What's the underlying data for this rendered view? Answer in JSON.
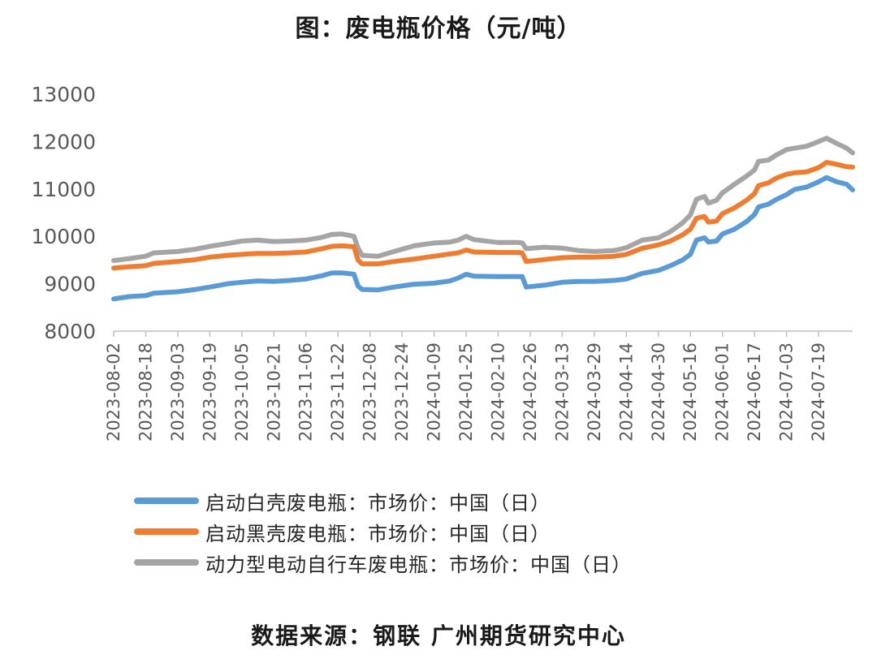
{
  "title": "图：废电瓶价格（元/吨）",
  "source": "数据来源：钢联 广州期货研究中心",
  "colors": {
    "axis": "#bfbfbf",
    "tick_text": "#595959",
    "series": [
      "#5b9bd5",
      "#ed7d31",
      "#a5a5a5"
    ]
  },
  "chart_data": {
    "type": "line",
    "title": "图：废电瓶价格（元/吨）",
    "ylim": [
      8000,
      13000
    ],
    "yticks": [
      8000,
      9000,
      10000,
      11000,
      12000,
      13000
    ],
    "x_range": [
      "2023-08-02",
      "2024-08-05"
    ],
    "xtick_labels": [
      "2023-08-02",
      "2023-08-18",
      "2023-09-03",
      "2023-09-19",
      "2023-10-05",
      "2023-10-21",
      "2023-11-06",
      "2023-11-22",
      "2023-12-08",
      "2023-12-24",
      "2024-01-09",
      "2024-01-25",
      "2024-02-10",
      "2024-02-26",
      "2024-03-13",
      "2024-03-29",
      "2024-04-14",
      "2024-04-30",
      "2024-05-16",
      "2024-06-01",
      "2024-06-17",
      "2024-07-03",
      "2024-07-19"
    ],
    "grid": false,
    "legend_position": "bottom",
    "series": [
      {
        "name": "启动白壳废电瓶：市场价：中国（日）",
        "color": "#5b9bd5",
        "points": [
          [
            "2023-08-02",
            8680
          ],
          [
            "2023-08-10",
            8730
          ],
          [
            "2023-08-18",
            8750
          ],
          [
            "2023-08-22",
            8800
          ],
          [
            "2023-09-03",
            8830
          ],
          [
            "2023-09-12",
            8880
          ],
          [
            "2023-09-19",
            8930
          ],
          [
            "2023-09-28",
            9000
          ],
          [
            "2023-10-05",
            9030
          ],
          [
            "2023-10-13",
            9060
          ],
          [
            "2023-10-21",
            9050
          ],
          [
            "2023-10-29",
            9070
          ],
          [
            "2023-11-06",
            9100
          ],
          [
            "2023-11-14",
            9170
          ],
          [
            "2023-11-19",
            9230
          ],
          [
            "2023-11-24",
            9230
          ],
          [
            "2023-11-30",
            9200
          ],
          [
            "2023-12-02",
            8950
          ],
          [
            "2023-12-04",
            8880
          ],
          [
            "2023-12-12",
            8870
          ],
          [
            "2023-12-20",
            8930
          ],
          [
            "2023-12-30",
            8990
          ],
          [
            "2024-01-09",
            9010
          ],
          [
            "2024-01-17",
            9060
          ],
          [
            "2024-01-21",
            9120
          ],
          [
            "2024-01-25",
            9200
          ],
          [
            "2024-01-29",
            9160
          ],
          [
            "2024-02-10",
            9150
          ],
          [
            "2024-02-20",
            9150
          ],
          [
            "2024-02-22",
            9150
          ],
          [
            "2024-02-24",
            8930
          ],
          [
            "2024-03-04",
            8970
          ],
          [
            "2024-03-13",
            9030
          ],
          [
            "2024-03-21",
            9050
          ],
          [
            "2024-03-29",
            9050
          ],
          [
            "2024-04-08",
            9070
          ],
          [
            "2024-04-14",
            9100
          ],
          [
            "2024-04-22",
            9220
          ],
          [
            "2024-04-30",
            9280
          ],
          [
            "2024-05-06",
            9380
          ],
          [
            "2024-05-12",
            9500
          ],
          [
            "2024-05-16",
            9620
          ],
          [
            "2024-05-19",
            9920
          ],
          [
            "2024-05-23",
            9970
          ],
          [
            "2024-05-25",
            9880
          ],
          [
            "2024-05-29",
            9900
          ],
          [
            "2024-06-01",
            10050
          ],
          [
            "2024-06-07",
            10150
          ],
          [
            "2024-06-13",
            10310
          ],
          [
            "2024-06-17",
            10460
          ],
          [
            "2024-06-19",
            10620
          ],
          [
            "2024-06-24",
            10680
          ],
          [
            "2024-06-28",
            10780
          ],
          [
            "2024-07-03",
            10880
          ],
          [
            "2024-07-07",
            10990
          ],
          [
            "2024-07-13",
            11040
          ],
          [
            "2024-07-19",
            11150
          ],
          [
            "2024-07-23",
            11240
          ],
          [
            "2024-07-28",
            11150
          ],
          [
            "2024-08-02",
            11100
          ],
          [
            "2024-08-05",
            10980
          ]
        ]
      },
      {
        "name": "启动黑壳废电瓶：市场价：中国（日）",
        "color": "#ed7d31",
        "points": [
          [
            "2023-08-02",
            9330
          ],
          [
            "2023-08-10",
            9360
          ],
          [
            "2023-08-18",
            9380
          ],
          [
            "2023-08-22",
            9430
          ],
          [
            "2023-09-03",
            9470
          ],
          [
            "2023-09-12",
            9510
          ],
          [
            "2023-09-19",
            9560
          ],
          [
            "2023-09-28",
            9600
          ],
          [
            "2023-10-05",
            9620
          ],
          [
            "2023-10-13",
            9640
          ],
          [
            "2023-10-21",
            9640
          ],
          [
            "2023-10-29",
            9650
          ],
          [
            "2023-11-06",
            9670
          ],
          [
            "2023-11-14",
            9740
          ],
          [
            "2023-11-19",
            9790
          ],
          [
            "2023-11-24",
            9800
          ],
          [
            "2023-11-30",
            9780
          ],
          [
            "2023-12-02",
            9500
          ],
          [
            "2023-12-04",
            9420
          ],
          [
            "2023-12-12",
            9420
          ],
          [
            "2023-12-20",
            9470
          ],
          [
            "2023-12-30",
            9520
          ],
          [
            "2024-01-09",
            9580
          ],
          [
            "2024-01-17",
            9630
          ],
          [
            "2024-01-21",
            9650
          ],
          [
            "2024-01-25",
            9710
          ],
          [
            "2024-01-29",
            9670
          ],
          [
            "2024-02-10",
            9660
          ],
          [
            "2024-02-20",
            9660
          ],
          [
            "2024-02-22",
            9650
          ],
          [
            "2024-02-24",
            9470
          ],
          [
            "2024-03-04",
            9510
          ],
          [
            "2024-03-13",
            9550
          ],
          [
            "2024-03-21",
            9560
          ],
          [
            "2024-03-29",
            9560
          ],
          [
            "2024-04-08",
            9580
          ],
          [
            "2024-04-14",
            9620
          ],
          [
            "2024-04-22",
            9750
          ],
          [
            "2024-04-30",
            9820
          ],
          [
            "2024-05-06",
            9900
          ],
          [
            "2024-05-12",
            10030
          ],
          [
            "2024-05-16",
            10150
          ],
          [
            "2024-05-19",
            10380
          ],
          [
            "2024-05-23",
            10420
          ],
          [
            "2024-05-25",
            10300
          ],
          [
            "2024-05-29",
            10320
          ],
          [
            "2024-06-01",
            10480
          ],
          [
            "2024-06-07",
            10600
          ],
          [
            "2024-06-13",
            10760
          ],
          [
            "2024-06-17",
            10900
          ],
          [
            "2024-06-19",
            11070
          ],
          [
            "2024-06-24",
            11130
          ],
          [
            "2024-06-28",
            11230
          ],
          [
            "2024-07-03",
            11310
          ],
          [
            "2024-07-07",
            11340
          ],
          [
            "2024-07-13",
            11360
          ],
          [
            "2024-07-19",
            11450
          ],
          [
            "2024-07-23",
            11560
          ],
          [
            "2024-07-28",
            11520
          ],
          [
            "2024-08-02",
            11470
          ],
          [
            "2024-08-05",
            11460
          ]
        ]
      },
      {
        "name": "动力型电动自行车废电瓶：市场价：中国（日）",
        "color": "#a5a5a5",
        "points": [
          [
            "2023-08-02",
            9490
          ],
          [
            "2023-08-10",
            9530
          ],
          [
            "2023-08-18",
            9580
          ],
          [
            "2023-08-22",
            9650
          ],
          [
            "2023-09-03",
            9680
          ],
          [
            "2023-09-12",
            9730
          ],
          [
            "2023-09-19",
            9790
          ],
          [
            "2023-09-28",
            9850
          ],
          [
            "2023-10-05",
            9900
          ],
          [
            "2023-10-13",
            9920
          ],
          [
            "2023-10-21",
            9890
          ],
          [
            "2023-10-29",
            9900
          ],
          [
            "2023-11-06",
            9920
          ],
          [
            "2023-11-14",
            9980
          ],
          [
            "2023-11-19",
            10040
          ],
          [
            "2023-11-24",
            10050
          ],
          [
            "2023-11-30",
            10000
          ],
          [
            "2023-12-02",
            9750
          ],
          [
            "2023-12-04",
            9600
          ],
          [
            "2023-12-12",
            9580
          ],
          [
            "2023-12-20",
            9680
          ],
          [
            "2023-12-30",
            9800
          ],
          [
            "2024-01-09",
            9860
          ],
          [
            "2024-01-17",
            9880
          ],
          [
            "2024-01-21",
            9920
          ],
          [
            "2024-01-25",
            10000
          ],
          [
            "2024-01-29",
            9930
          ],
          [
            "2024-02-10",
            9870
          ],
          [
            "2024-02-20",
            9870
          ],
          [
            "2024-02-22",
            9860
          ],
          [
            "2024-02-24",
            9740
          ],
          [
            "2024-03-04",
            9770
          ],
          [
            "2024-03-13",
            9750
          ],
          [
            "2024-03-21",
            9700
          ],
          [
            "2024-03-29",
            9680
          ],
          [
            "2024-04-08",
            9700
          ],
          [
            "2024-04-14",
            9760
          ],
          [
            "2024-04-22",
            9920
          ],
          [
            "2024-04-30",
            9970
          ],
          [
            "2024-05-06",
            10100
          ],
          [
            "2024-05-12",
            10280
          ],
          [
            "2024-05-16",
            10450
          ],
          [
            "2024-05-19",
            10780
          ],
          [
            "2024-05-23",
            10840
          ],
          [
            "2024-05-25",
            10700
          ],
          [
            "2024-05-29",
            10760
          ],
          [
            "2024-06-01",
            10920
          ],
          [
            "2024-06-07",
            11100
          ],
          [
            "2024-06-13",
            11270
          ],
          [
            "2024-06-17",
            11400
          ],
          [
            "2024-06-19",
            11580
          ],
          [
            "2024-06-24",
            11610
          ],
          [
            "2024-06-28",
            11720
          ],
          [
            "2024-07-03",
            11830
          ],
          [
            "2024-07-07",
            11860
          ],
          [
            "2024-07-13",
            11900
          ],
          [
            "2024-07-19",
            12000
          ],
          [
            "2024-07-23",
            12070
          ],
          [
            "2024-07-28",
            11960
          ],
          [
            "2024-08-02",
            11860
          ],
          [
            "2024-08-05",
            11760
          ]
        ]
      }
    ]
  }
}
